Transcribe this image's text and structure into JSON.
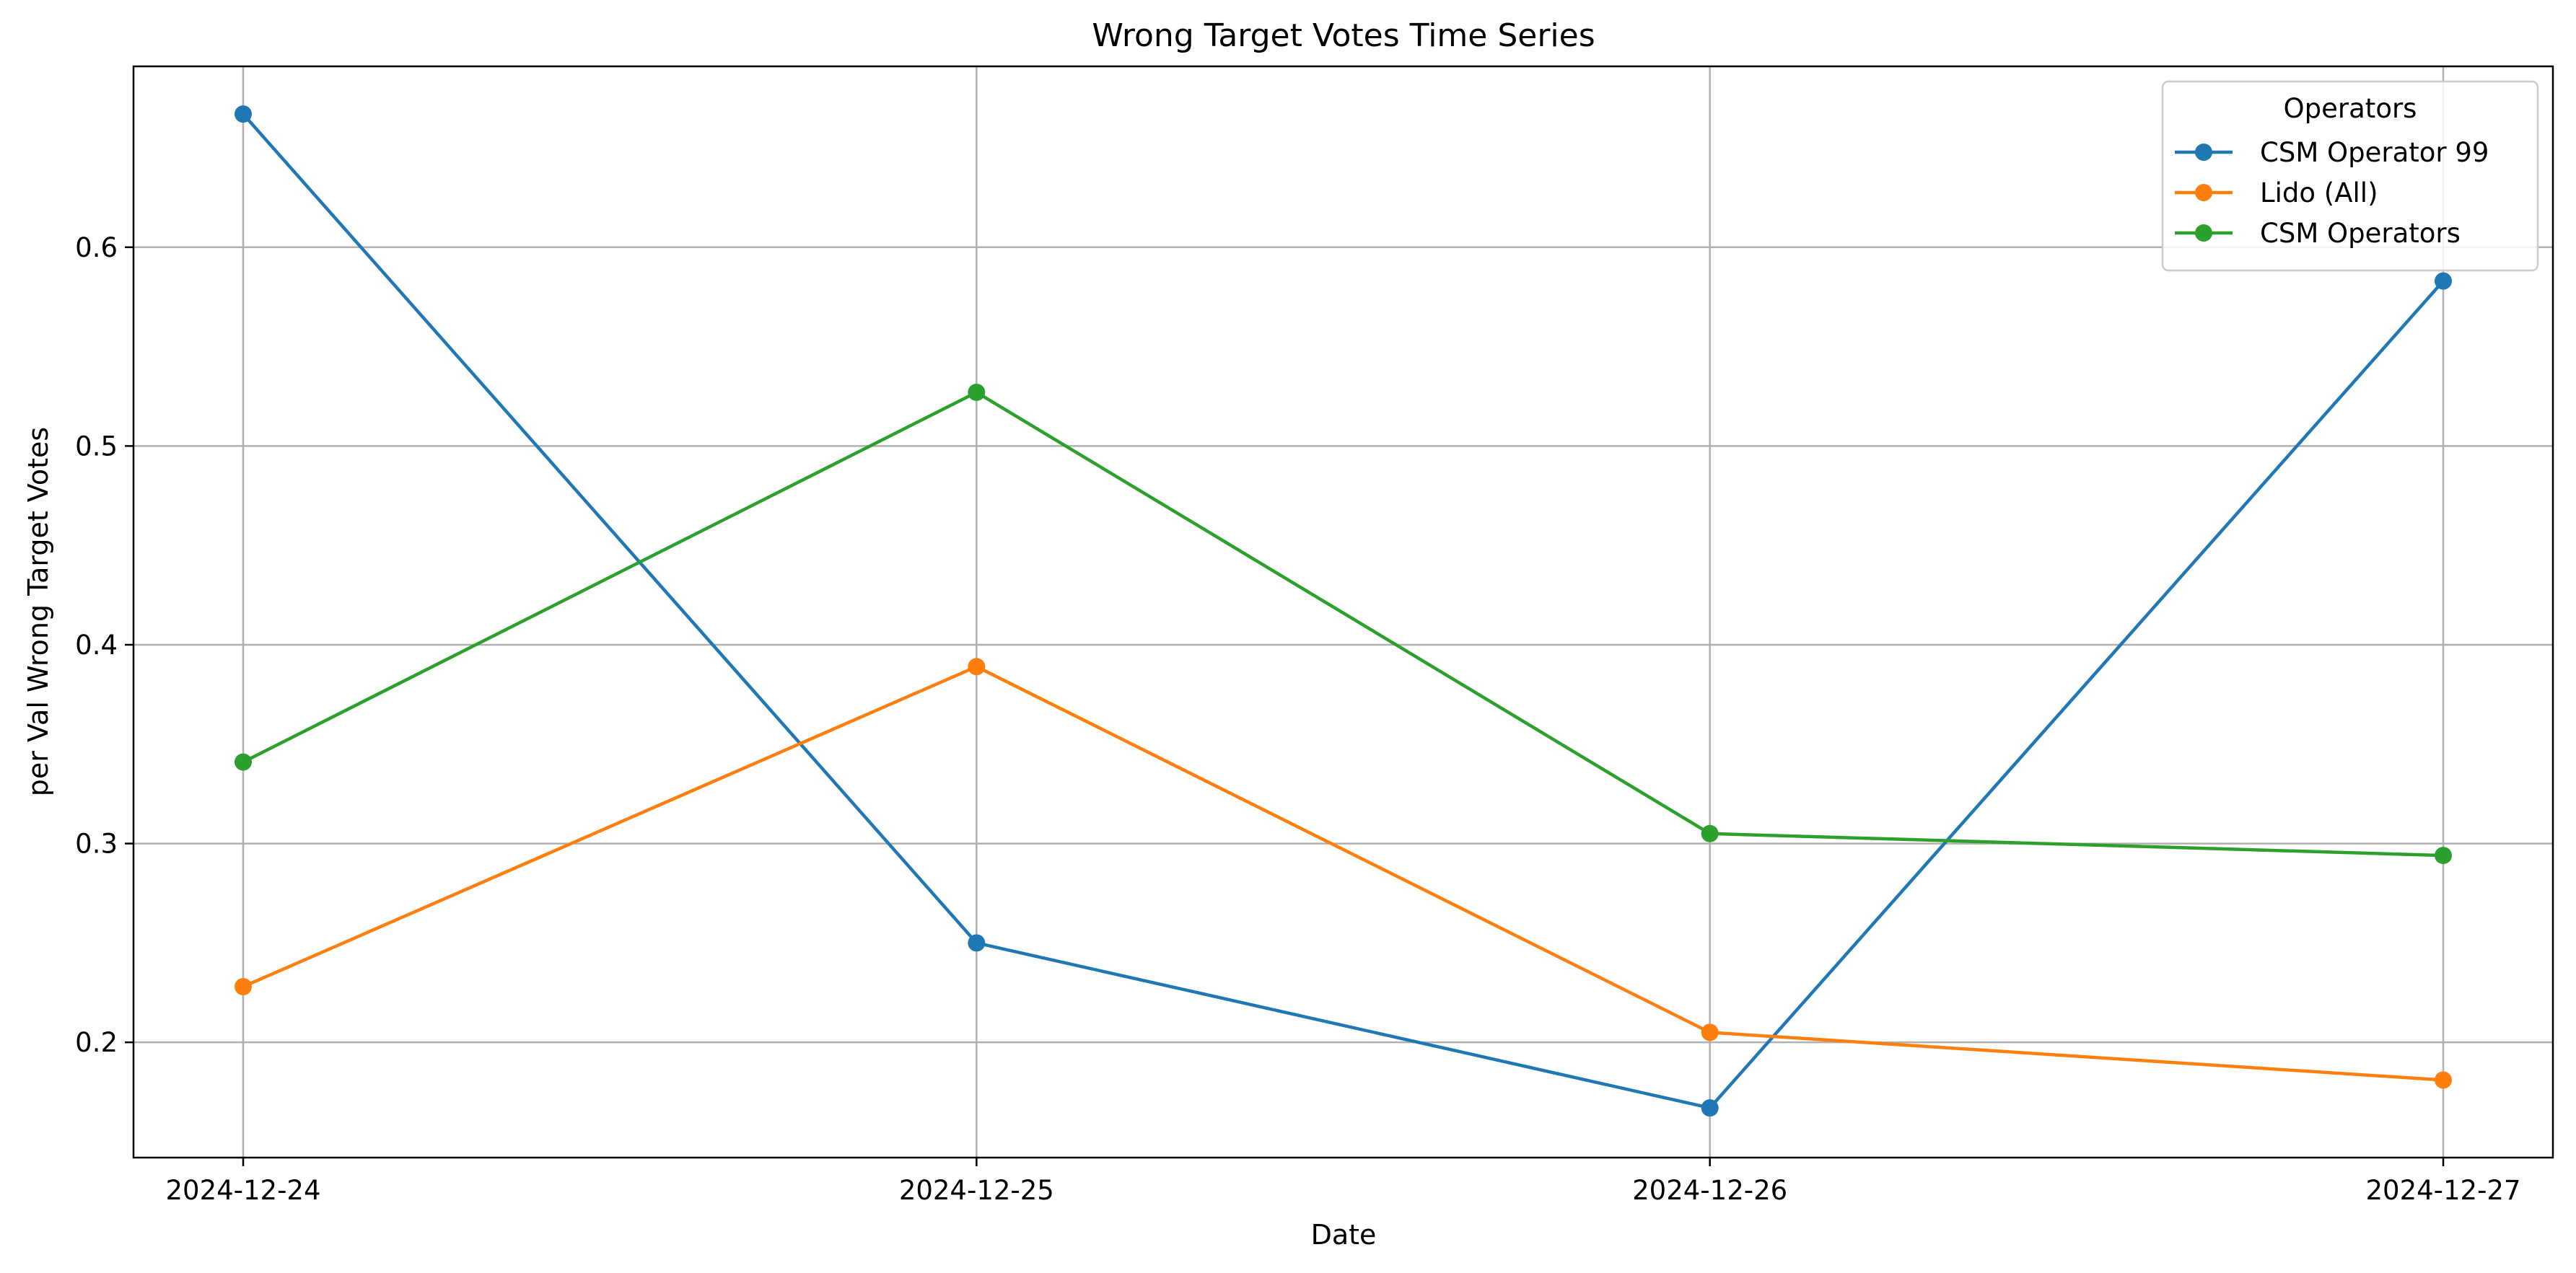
{
  "chart_data": {
    "type": "line",
    "title": "Wrong Target Votes Time Series",
    "xlabel": "Date",
    "ylabel": "per Val Wrong Target Votes",
    "x": [
      "2024-12-24",
      "2024-12-25",
      "2024-12-26",
      "2024-12-27"
    ],
    "yticks": [
      0.2,
      0.3,
      0.4,
      0.5,
      0.6
    ],
    "ytick_labels": [
      "0.2",
      "0.3",
      "0.4",
      "0.5",
      "0.6"
    ],
    "ylim": [
      0.142,
      0.691
    ],
    "grid": true,
    "legend": {
      "title": "Operators",
      "placement": "top-right"
    },
    "series": [
      {
        "name": "CSM Operator 99",
        "color": "#1f77b4",
        "values": [
          0.667,
          0.25,
          0.167,
          0.583
        ]
      },
      {
        "name": "Lido (All)",
        "color": "#ff7f0e",
        "values": [
          0.228,
          0.389,
          0.205,
          0.181
        ]
      },
      {
        "name": "CSM Operators",
        "color": "#2ca02c",
        "values": [
          0.341,
          0.527,
          0.305,
          0.294
        ]
      }
    ]
  }
}
